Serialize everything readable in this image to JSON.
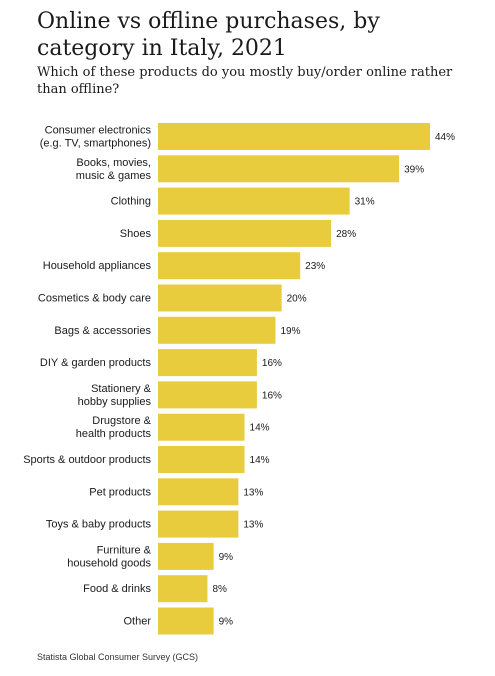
{
  "title": "Online vs offline purchases, by category in Italy, 2021",
  "subtitle": "Which of these products do you mostly buy/order online rather than offline?",
  "source": "Statista Global Consumer Survey (GCS)",
  "colors": {
    "bar": "#e8cc3e",
    "text": "#1a1a1a"
  },
  "chart_data": {
    "type": "bar",
    "orientation": "horizontal",
    "title": "Online vs offline purchases, by category in Italy, 2021",
    "subtitle": "Which of these products do you mostly buy/order online rather than offline?",
    "unit": "%",
    "xlim": [
      0,
      44
    ],
    "grid": false,
    "categories": [
      [
        "Consumer electronics",
        "(e.g. TV, smartphones)"
      ],
      [
        "Books, movies,",
        "music & games"
      ],
      [
        "Clothing"
      ],
      [
        "Shoes"
      ],
      [
        "Household appliances"
      ],
      [
        "Cosmetics & body care"
      ],
      [
        "Bags & accessories"
      ],
      [
        "DIY & garden products"
      ],
      [
        "Stationery &",
        "hobby supplies"
      ],
      [
        "Drugstore &",
        "health products"
      ],
      [
        "Sports & outdoor products"
      ],
      [
        "Pet products"
      ],
      [
        "Toys & baby products"
      ],
      [
        "Furniture &",
        "household goods"
      ],
      [
        "Food & drinks"
      ],
      [
        "Other"
      ]
    ],
    "values": [
      44,
      39,
      31,
      28,
      23,
      20,
      19,
      16,
      16,
      14,
      14,
      13,
      13,
      9,
      8,
      9
    ],
    "value_labels": [
      "44%",
      "39%",
      "31%",
      "28%",
      "23%",
      "20%",
      "19%",
      "16%",
      "16%",
      "14%",
      "14%",
      "13%",
      "13%",
      "9%",
      "8%",
      "9%"
    ]
  }
}
